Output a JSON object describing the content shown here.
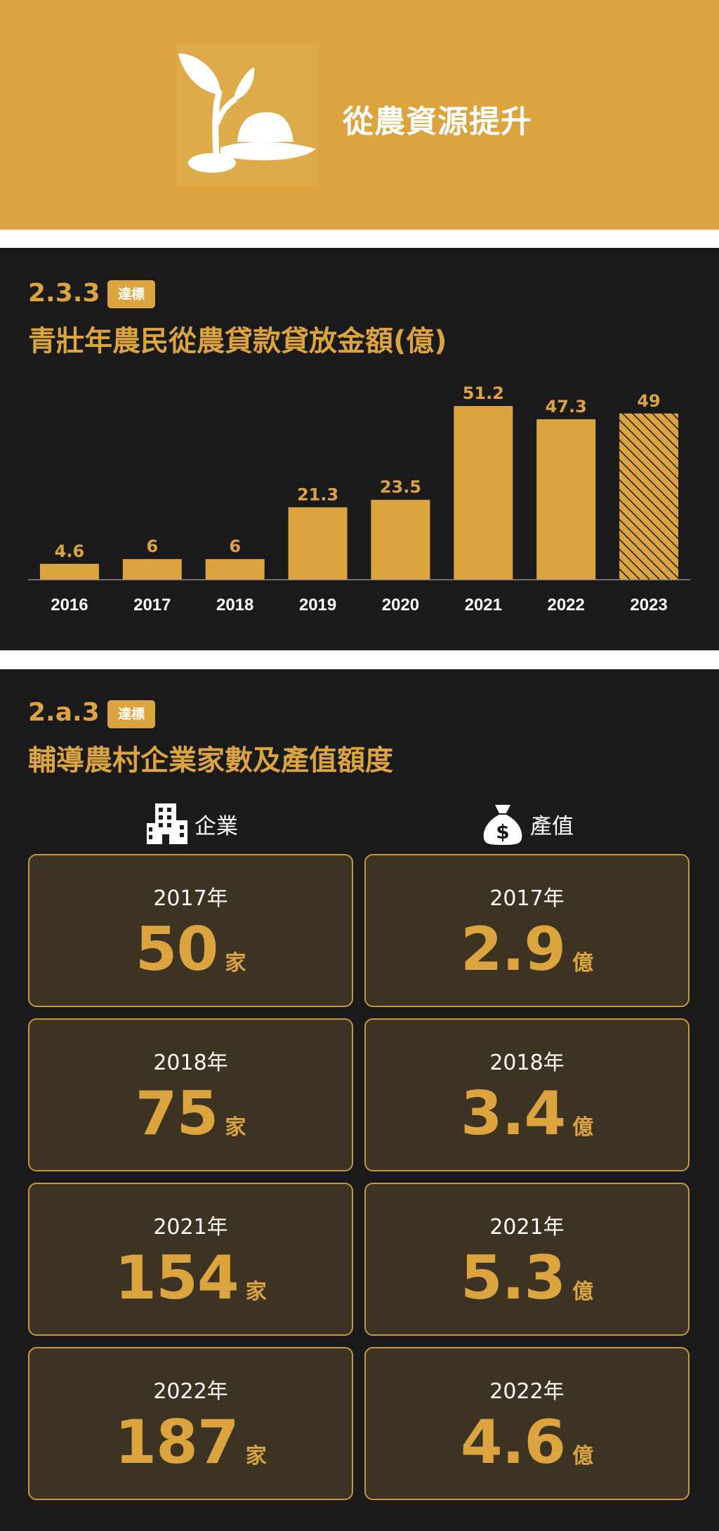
{
  "header": {
    "title": "從農資源提升",
    "icon": "sprout-hat-icon"
  },
  "colors": {
    "accent": "#dba43f",
    "background": "#1a1a1b",
    "card": "#3d3322"
  },
  "section1": {
    "code": "2.3.3",
    "badge": "達標",
    "title": "青壯年農民從農貸款貸放金額(億)"
  },
  "chart_data": {
    "type": "bar",
    "title": "青壯年農民從農貸款貸放金額(億)",
    "categories": [
      "2016",
      "2017",
      "2018",
      "2019",
      "2020",
      "2021",
      "2022",
      "2023"
    ],
    "values": [
      4.6,
      6,
      6,
      21.3,
      23.5,
      51.2,
      47.3,
      49
    ],
    "value_labels": [
      "4.6",
      "6",
      "6",
      "21.3",
      "23.5",
      "51.2",
      "47.3",
      "49"
    ],
    "hatched": [
      false,
      false,
      false,
      false,
      false,
      false,
      false,
      true
    ],
    "ylim": [
      0,
      56
    ],
    "grid": false,
    "xlabel": "",
    "ylabel": ""
  },
  "section2": {
    "code": "2.a.3",
    "badge": "達標",
    "title": "輔導農村企業家數及產值額度",
    "enterprise": {
      "label": "企業",
      "icon": "building-icon",
      "cards": [
        {
          "year": "2017年",
          "value": "50",
          "unit": "家"
        },
        {
          "year": "2018年",
          "value": "75",
          "unit": "家"
        },
        {
          "year": "2021年",
          "value": "154",
          "unit": "家"
        },
        {
          "year": "2022年",
          "value": "187",
          "unit": "家"
        }
      ]
    },
    "output": {
      "label": "產值",
      "icon": "money-bag-icon",
      "cards": [
        {
          "year": "2017年",
          "value": "2.9",
          "unit": "億"
        },
        {
          "year": "2018年",
          "value": "3.4",
          "unit": "億"
        },
        {
          "year": "2021年",
          "value": "5.3",
          "unit": "億"
        },
        {
          "year": "2022年",
          "value": "4.6",
          "unit": "億"
        }
      ]
    }
  }
}
